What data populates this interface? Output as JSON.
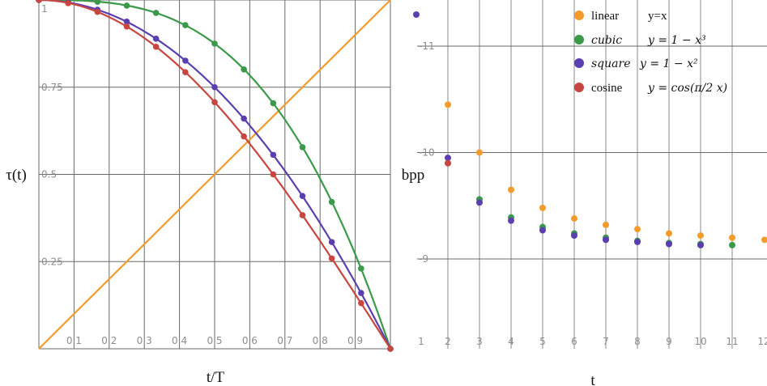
{
  "chart_data": [
    {
      "type": "line",
      "xlabel": "t/T",
      "ylabel": "τ(t)",
      "xlim": [
        0,
        1
      ],
      "ylim": [
        0,
        1
      ],
      "x_ticks": [
        "0.1",
        "0.2",
        "0.3",
        "0.4",
        "0.5",
        "0.6",
        "0.7",
        "0.8",
        "0.9"
      ],
      "y_ticks": [
        {
          "value": 1,
          "label": "1"
        },
        {
          "value": 0.75,
          "label": "0.75"
        },
        {
          "value": 0.5,
          "label": "0.5"
        },
        {
          "value": 0.25,
          "label": "0.25"
        }
      ],
      "series": [
        {
          "name": "linear",
          "color": "#f39c2c",
          "points": [
            [
              0,
              0
            ],
            [
              1,
              1
            ]
          ]
        },
        {
          "name": "cubic",
          "color": "#3a9a4a",
          "points": [
            [
              0,
              1
            ],
            [
              0.0833,
              0.999
            ],
            [
              0.1667,
              0.995
            ],
            [
              0.25,
              0.984
            ],
            [
              0.3333,
              0.963
            ],
            [
              0.4167,
              0.928
            ],
            [
              0.5,
              0.875
            ],
            [
              0.5833,
              0.801
            ],
            [
              0.6667,
              0.704
            ],
            [
              0.75,
              0.578
            ],
            [
              0.8333,
              0.421
            ],
            [
              0.9167,
              0.23
            ],
            [
              1,
              0
            ]
          ]
        },
        {
          "name": "square",
          "color": "#5b3fb0",
          "points": [
            [
              0,
              1
            ],
            [
              0.0833,
              0.993
            ],
            [
              0.1667,
              0.972
            ],
            [
              0.25,
              0.938
            ],
            [
              0.3333,
              0.889
            ],
            [
              0.4167,
              0.826
            ],
            [
              0.5,
              0.75
            ],
            [
              0.5833,
              0.66
            ],
            [
              0.6667,
              0.556
            ],
            [
              0.75,
              0.438
            ],
            [
              0.8333,
              0.306
            ],
            [
              0.9167,
              0.16
            ],
            [
              1,
              0
            ]
          ]
        },
        {
          "name": "cosine",
          "color": "#c84640",
          "points": [
            [
              0,
              1
            ],
            [
              0.0833,
              0.991
            ],
            [
              0.1667,
              0.966
            ],
            [
              0.25,
              0.924
            ],
            [
              0.3333,
              0.866
            ],
            [
              0.4167,
              0.793
            ],
            [
              0.5,
              0.707
            ],
            [
              0.5833,
              0.609
            ],
            [
              0.6667,
              0.5
            ],
            [
              0.75,
              0.383
            ],
            [
              0.8333,
              0.259
            ],
            [
              0.9167,
              0.131
            ],
            [
              1,
              0
            ]
          ]
        }
      ]
    },
    {
      "type": "scatter",
      "xlabel": "t",
      "ylabel": "bpp",
      "xlim": [
        1,
        12
      ],
      "y_axis_note": "ticks are labeled -11, -10, -9 (top to bottom) in the source",
      "x_ticks": [
        "1",
        "2",
        "3",
        "4",
        "5",
        "6",
        "7",
        "8",
        "9",
        "10",
        "11",
        "12"
      ],
      "y_ticks": [
        {
          "value": -9,
          "label": "-9"
        },
        {
          "value": -10,
          "label": "-10"
        },
        {
          "value": -11,
          "label": "-11"
        }
      ],
      "series": [
        {
          "name": "linear",
          "color": "#f39c2c",
          "points": [
            [
              2,
              -10.45
            ],
            [
              3,
              -10.0
            ],
            [
              4,
              -9.65
            ],
            [
              5,
              -9.48
            ],
            [
              6,
              -9.38
            ],
            [
              7,
              -9.32
            ],
            [
              8,
              -9.28
            ],
            [
              9,
              -9.24
            ],
            [
              10,
              -9.22
            ],
            [
              11,
              -9.2
            ],
            [
              12,
              -9.18
            ]
          ]
        },
        {
          "name": "cubic",
          "color": "#3a9a4a",
          "points": [
            [
              2,
              -9.9
            ],
            [
              3,
              -9.56
            ],
            [
              4,
              -9.39
            ],
            [
              5,
              -9.3
            ],
            [
              6,
              -9.24
            ],
            [
              7,
              -9.2
            ],
            [
              8,
              -9.17
            ],
            [
              9,
              -9.15
            ],
            [
              10,
              -9.14
            ],
            [
              11,
              -9.13
            ]
          ]
        },
        {
          "name": "square",
          "color": "#5b3fb0",
          "points": [
            [
              1,
              -11.3
            ],
            [
              2,
              -9.95
            ],
            [
              3,
              -9.53
            ],
            [
              4,
              -9.36
            ],
            [
              5,
              -9.27
            ],
            [
              6,
              -9.22
            ],
            [
              7,
              -9.18
            ],
            [
              8,
              -9.16
            ],
            [
              9,
              -9.14
            ],
            [
              10,
              -9.13
            ]
          ]
        },
        {
          "name": "cosine",
          "color": "#c84640",
          "points": [
            [
              2,
              -9.9
            ]
          ]
        }
      ],
      "legend": {
        "position": "top-right",
        "entries": [
          {
            "name": "linear",
            "formula": "y=x",
            "color": "#f39c2c"
          },
          {
            "name": "cubic",
            "formula": "y = 1 − x³",
            "color": "#3a9a4a"
          },
          {
            "name": "square",
            "formula": "y = 1 − x²",
            "color": "#5b3fb0"
          },
          {
            "name": "cosine",
            "formula": "y = cos(π/2 x)",
            "color": "#c84640"
          }
        ]
      }
    }
  ]
}
